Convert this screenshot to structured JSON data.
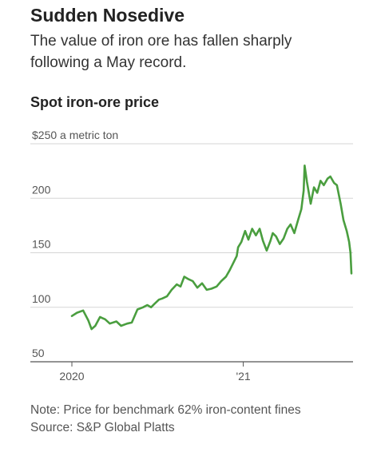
{
  "header": {
    "title": "Sudden Nosedive",
    "subtitle": "The value of iron ore has fallen sharply following a May record."
  },
  "chart_title": "Spot iron-ore price",
  "footnote": {
    "note": "Note: Price for benchmark 62% iron-content fines",
    "source": "Source: S&P Global Platts"
  },
  "chart_data": {
    "type": "line",
    "title": "Spot iron-ore price",
    "ylabel": "$250 a metric ton",
    "xlabel": "",
    "ylim": [
      50,
      250
    ],
    "y_ticks": [
      {
        "value": 250,
        "label": "$250 a metric ton"
      },
      {
        "value": 200,
        "label": "200"
      },
      {
        "value": 150,
        "label": "150"
      },
      {
        "value": 100,
        "label": "100"
      },
      {
        "value": 50,
        "label": "50"
      }
    ],
    "x_ticks": [
      {
        "date": "2020-01-01",
        "label": "2020"
      },
      {
        "date": "2021-01-01",
        "label": "'21"
      }
    ],
    "x_range": [
      "2020-01-01",
      "2021-08-20"
    ],
    "grid": true,
    "line_color": "#4a9e3f",
    "series": [
      {
        "x": [
          "2020-01-01",
          "2020-01-12",
          "2020-01-25",
          "2020-02-05",
          "2020-02-12",
          "2020-02-20",
          "2020-03-01",
          "2020-03-12",
          "2020-03-22",
          "2020-04-05",
          "2020-04-15",
          "2020-04-28",
          "2020-05-08",
          "2020-05-20",
          "2020-06-01",
          "2020-06-10",
          "2020-06-18",
          "2020-06-25",
          "2020-07-05",
          "2020-07-12",
          "2020-07-22",
          "2020-08-01",
          "2020-08-12",
          "2020-08-20",
          "2020-08-28",
          "2020-09-05",
          "2020-09-15",
          "2020-09-25",
          "2020-10-05",
          "2020-10-15",
          "2020-10-25",
          "2020-11-05",
          "2020-11-15",
          "2020-11-25",
          "2020-12-03",
          "2020-12-10",
          "2020-12-18",
          "2020-12-21",
          "2020-12-28",
          "2021-01-05",
          "2021-01-12",
          "2021-01-20",
          "2021-01-28",
          "2021-02-05",
          "2021-02-12",
          "2021-02-20",
          "2021-02-28",
          "2021-03-05",
          "2021-03-12",
          "2021-03-20",
          "2021-03-28",
          "2021-04-05",
          "2021-04-12",
          "2021-04-20",
          "2021-04-28",
          "2021-05-05",
          "2021-05-10",
          "2021-05-12",
          "2021-05-17",
          "2021-05-25",
          "2021-06-01",
          "2021-06-08",
          "2021-06-15",
          "2021-06-22",
          "2021-06-30",
          "2021-07-06",
          "2021-07-14",
          "2021-07-20",
          "2021-07-28",
          "2021-08-03",
          "2021-08-10",
          "2021-08-15",
          "2021-08-18",
          "2021-08-20"
        ],
        "y": [
          92,
          95,
          97,
          88,
          80,
          83,
          91,
          89,
          85,
          87,
          83,
          85,
          86,
          98,
          100,
          102,
          100,
          103,
          107,
          108,
          110,
          116,
          121,
          119,
          128,
          126,
          124,
          118,
          122,
          116,
          117,
          119,
          124,
          128,
          134,
          140,
          147,
          155,
          160,
          170,
          162,
          172,
          166,
          172,
          161,
          152,
          161,
          168,
          165,
          158,
          163,
          172,
          176,
          168,
          180,
          190,
          207,
          230,
          215,
          195,
          210,
          205,
          216,
          212,
          218,
          220,
          214,
          212,
          195,
          180,
          170,
          160,
          150,
          131
        ]
      }
    ]
  }
}
